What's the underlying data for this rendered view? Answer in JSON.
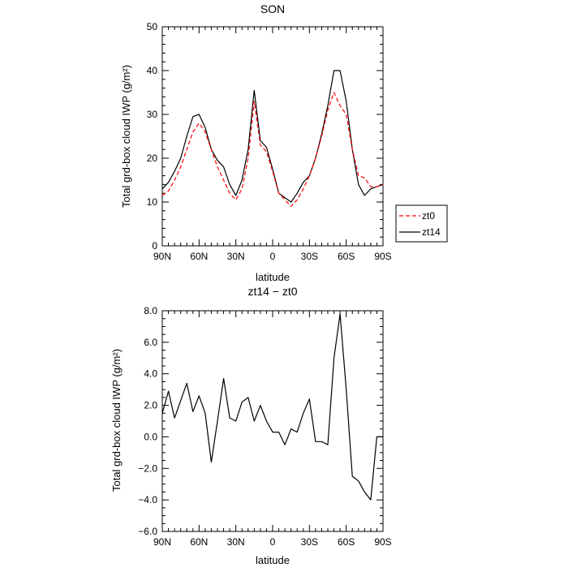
{
  "chart_data": [
    {
      "type": "line",
      "title": "SON",
      "xlabel": "latitude",
      "ylabel": "Total grd-box cloud IWP (g/m²)",
      "x_tick_labels": [
        "90N",
        "60N",
        "30N",
        "0",
        "30S",
        "60S",
        "90S"
      ],
      "y_tick_labels": [
        "0",
        "10",
        "20",
        "30",
        "40",
        "50"
      ],
      "xlim": [
        90,
        -90
      ],
      "ylim": [
        0,
        50
      ],
      "grid": false,
      "legend": "right",
      "colors": {
        "zt0": "#ff0000",
        "zt14": "#000000"
      },
      "x": [
        90,
        85,
        80,
        75,
        70,
        65,
        60,
        55,
        50,
        45,
        40,
        35,
        30,
        25,
        20,
        15,
        10,
        5,
        0,
        -5,
        -10,
        -15,
        -20,
        -25,
        -30,
        -35,
        -40,
        -45,
        -50,
        -55,
        -60,
        -65,
        -70,
        -75,
        -80,
        -85,
        -90
      ],
      "series": [
        {
          "name": "zt0",
          "values": [
            11.5,
            12.5,
            15.0,
            18.0,
            22.0,
            26.0,
            28.0,
            26.0,
            22.0,
            18.0,
            15.0,
            12.0,
            10.5,
            13.0,
            20.0,
            33.0,
            23.0,
            21.5,
            17.0,
            12.0,
            10.5,
            9.0,
            10.5,
            13.0,
            16.0,
            20.0,
            25.0,
            31.0,
            35.0,
            32.0,
            30.0,
            22.0,
            16.0,
            15.5,
            13.5,
            13.5,
            14.0
          ]
        },
        {
          "name": "zt14",
          "values": [
            13.0,
            14.5,
            17.0,
            20.0,
            25.0,
            29.5,
            30.0,
            27.0,
            22.0,
            19.5,
            18.0,
            14.0,
            11.5,
            15.0,
            22.0,
            35.5,
            24.0,
            22.5,
            17.5,
            12.0,
            11.0,
            10.0,
            12.0,
            14.5,
            16.0,
            20.0,
            25.5,
            32.0,
            40.0,
            40.0,
            33.0,
            22.0,
            14.0,
            11.5,
            13.0,
            13.5,
            14.0
          ]
        }
      ]
    },
    {
      "type": "line",
      "title": "zt14 − zt0",
      "xlabel": "latitude",
      "ylabel": "Total grd-box cloud IWP (g/m²)",
      "x_tick_labels": [
        "90N",
        "60N",
        "30N",
        "0",
        "30S",
        "60S",
        "90S"
      ],
      "y_tick_labels": [
        "8.0",
        "6.0",
        "4.0",
        "2.0",
        "0.0",
        "−2.0",
        "−4.0",
        "−6.0"
      ],
      "xlim": [
        90,
        -90
      ],
      "ylim": [
        -6,
        8
      ],
      "grid": false,
      "colors": {
        "line": "#000000"
      },
      "x": [
        90,
        85,
        80,
        75,
        70,
        65,
        60,
        55,
        50,
        45,
        40,
        35,
        30,
        25,
        20,
        15,
        10,
        5,
        0,
        -5,
        -10,
        -15,
        -20,
        -25,
        -30,
        -35,
        -40,
        -45,
        -50,
        -55,
        -60,
        -65,
        -70,
        -75,
        -80,
        -85,
        -90
      ],
      "series": [
        {
          "values": [
            1.5,
            2.9,
            1.2,
            2.3,
            3.4,
            1.6,
            2.6,
            1.5,
            -1.6,
            1.0,
            3.7,
            1.2,
            1.0,
            2.2,
            2.5,
            1.0,
            2.0,
            1.0,
            0.3,
            0.3,
            -0.5,
            0.5,
            0.3,
            1.5,
            2.4,
            -0.3,
            -0.3,
            -0.5,
            5.0,
            7.8,
            3.0,
            -2.5,
            -2.8,
            -3.5,
            -4.0,
            0.0,
            0.0
          ]
        }
      ]
    }
  ]
}
